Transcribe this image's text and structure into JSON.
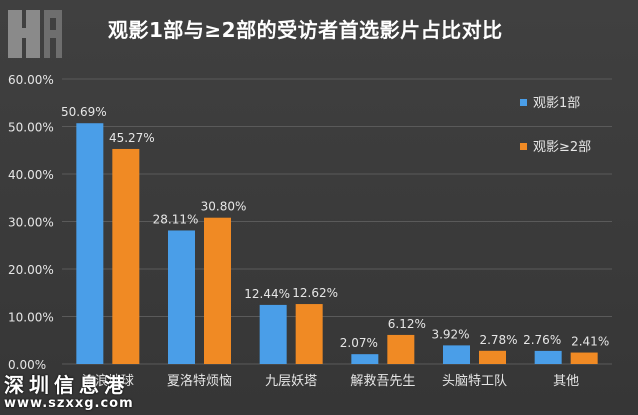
{
  "title": "观影1部与≥2部的受访者首选影片占比对比",
  "colors": {
    "series1": "#4a9ee8",
    "series2": "#f08a24",
    "background": "#3b3b3b",
    "grid": "#5a5a5a",
    "text": "#e6e6e6"
  },
  "watermark": {
    "text": "深圳信息港",
    "url": "www.szxxg.com"
  },
  "chart_data": {
    "type": "bar",
    "title": "观影1部与≥2部的受访者首选影片占比对比",
    "categories": [
      "流浪地球",
      "夏洛特烦恼",
      "九层妖塔",
      "解救吾先生",
      "头脑特工队",
      "其他"
    ],
    "series": [
      {
        "name": "观影1部",
        "values": [
          50.69,
          28.11,
          12.44,
          2.07,
          3.92,
          2.76
        ],
        "labels": [
          "50.69%",
          "28.11%",
          "12.44%",
          "2.07%",
          "3.92%",
          "2.76%"
        ]
      },
      {
        "name": "观影≥2部",
        "values": [
          45.27,
          30.8,
          12.62,
          6.12,
          2.78,
          2.41
        ],
        "labels": [
          "45.27%",
          "30.80%",
          "12.62%",
          "6.12%",
          "2.78%",
          "2.41%"
        ]
      }
    ],
    "yticks": [
      "0.00%",
      "10.00%",
      "20.00%",
      "30.00%",
      "40.00%",
      "50.00%",
      "60.00%"
    ],
    "ylim": [
      0,
      60
    ],
    "grid": true,
    "legend_position": "right"
  }
}
